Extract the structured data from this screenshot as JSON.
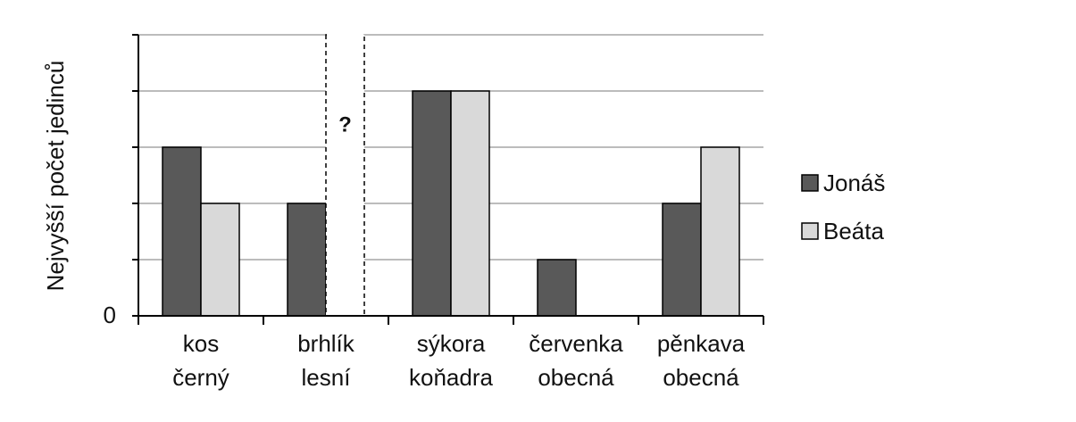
{
  "chart_data": {
    "type": "bar",
    "title": "",
    "xlabel": "",
    "ylabel": "Nejvyšší počet jedinců",
    "y_tick_labels": [
      "0"
    ],
    "ylim": [
      0,
      5
    ],
    "grid": true,
    "legend_position": "right",
    "categories": [
      [
        "kos",
        "černý"
      ],
      [
        "brhlík",
        "lesní"
      ],
      [
        "sýkora",
        "koňadra"
      ],
      [
        "červenka",
        "obecná"
      ],
      [
        "pěnkava",
        "obecná"
      ]
    ],
    "series": [
      {
        "name": "Jonáš",
        "color": "#595959",
        "values": [
          3,
          2,
          4,
          1,
          2
        ]
      },
      {
        "name": "Beáta",
        "color": "#d9d9d9",
        "values": [
          2,
          null,
          4,
          0,
          3
        ]
      }
    ],
    "missing_marker": {
      "category_index": 1,
      "series_index": 1,
      "label": "?"
    }
  }
}
